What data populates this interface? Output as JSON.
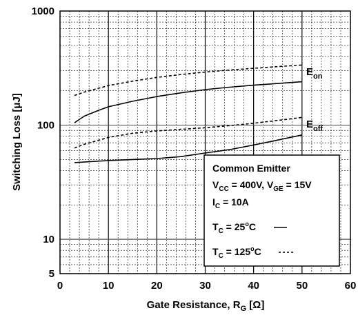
{
  "chart_data": {
    "type": "line",
    "xlabel": "Gate Resistance, R",
    "xlabel_sub": "G",
    "xlabel_unit": " [Ω]",
    "ylabel": "Switching Loss [μJ]",
    "xlim": [
      0,
      60
    ],
    "ylim": [
      5,
      1000
    ],
    "yscale": "log",
    "grid": true,
    "x_ticks": [
      "0",
      "10",
      "20",
      "30",
      "40",
      "50",
      "60"
    ],
    "y_ticks": [
      "5",
      "10",
      "100",
      "1000"
    ],
    "series": [
      {
        "name": "Eon",
        "label_main": "E",
        "label_sub": "on",
        "condition": "TC = 25°C",
        "style": "solid",
        "x": [
          3,
          5,
          8,
          10,
          15,
          20,
          25,
          30,
          35,
          40,
          45,
          50
        ],
        "y": [
          105,
          120,
          135,
          145,
          162,
          178,
          192,
          205,
          215,
          224,
          232,
          240
        ]
      },
      {
        "name": "Eon",
        "label_main": "E",
        "label_sub": "on",
        "condition": "TC = 125°C",
        "style": "dashed",
        "x": [
          3,
          5,
          10,
          15,
          20,
          25,
          30,
          35,
          40,
          45,
          50
        ],
        "y": [
          182,
          195,
          222,
          243,
          262,
          278,
          292,
          304,
          315,
          326,
          336
        ]
      },
      {
        "name": "Eoff",
        "label_main": "E",
        "label_sub": "off",
        "condition": "TC = 25°C",
        "style": "solid",
        "x": [
          3,
          10,
          15,
          20,
          25,
          30,
          35,
          40,
          45,
          50
        ],
        "y": [
          47,
          49,
          50,
          51,
          53,
          57,
          61,
          67,
          74,
          82
        ]
      },
      {
        "name": "Eoff",
        "label_main": "E",
        "label_sub": "off",
        "condition": "TC = 125°C",
        "style": "dashed",
        "x": [
          3,
          5,
          10,
          15,
          20,
          25,
          30,
          35,
          40,
          45,
          50
        ],
        "y": [
          63,
          68,
          78,
          85,
          89,
          92,
          95,
          99,
          104,
          110,
          117
        ]
      }
    ],
    "legend": {
      "placement": "bottom-right",
      "title": "Common Emitter",
      "line2_a": "V",
      "line2_a_sub": "CC",
      "line2_b": " = 400V, V",
      "line2_b_sub": "GE",
      "line2_c": " = 15V",
      "line3_a": "I",
      "line3_a_sub": "C",
      "line3_b": " = 10A",
      "line4_a": "T",
      "line4_a_sub": "C",
      "line4_b": " = 25",
      "line4_sup": "o",
      "line4_c": "C",
      "line5_a": "T",
      "line5_a_sub": "C",
      "line5_b": " = 125",
      "line5_sup": "o",
      "line5_c": "C"
    }
  }
}
